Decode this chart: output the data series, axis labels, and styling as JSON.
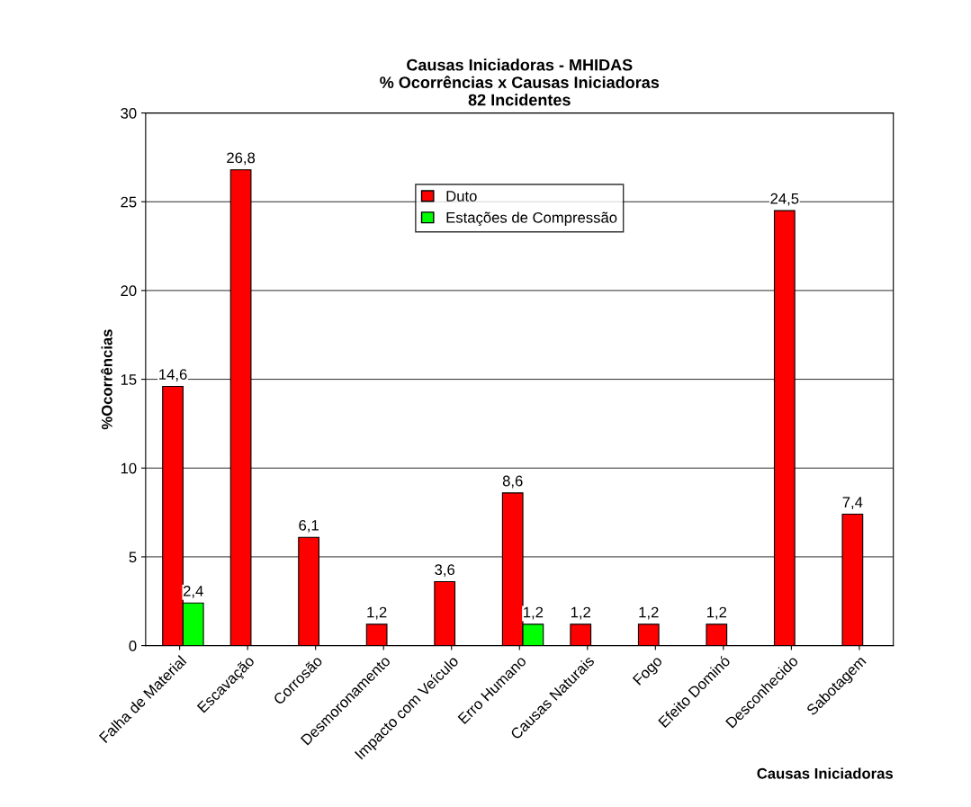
{
  "chart_data": {
    "type": "bar",
    "title": "Causas Iniciadoras - MHIDAS\n% Ocorrências x Causas Iniciadoras\n82 Incidentes",
    "xlabel": "Causas Iniciadoras",
    "ylabel": "%Ocorrências",
    "categories": [
      "Falha de Material",
      "Escavação",
      "Corrosão",
      "Desmoronamento",
      "Impacto com Veículo",
      "Erro Humano",
      "Causas Naturais",
      "Fogo",
      "Efeito Dominó",
      "Desconhecido",
      "Sabotagem"
    ],
    "series": [
      {
        "name": "Duto",
        "color": "#ff0000",
        "values": [
          14.6,
          26.8,
          6.1,
          1.2,
          3.6,
          8.6,
          1.2,
          1.2,
          1.2,
          24.5,
          7.4
        ],
        "value_labels": [
          "14,6",
          "26,8",
          "6,1",
          "1,2",
          "3,6",
          "8,6",
          "1,2",
          "1,2",
          "1,2",
          "24,5",
          "7,4"
        ]
      },
      {
        "name": "Estações de Compressão",
        "color": "#00ff00",
        "values": [
          2.4,
          null,
          null,
          null,
          null,
          1.2,
          null,
          null,
          null,
          null,
          null
        ],
        "value_labels": [
          "2,4",
          null,
          null,
          null,
          null,
          "1,2",
          null,
          null,
          null,
          null,
          null
        ]
      }
    ],
    "ylim": [
      0,
      30
    ],
    "yticks": [
      0,
      5,
      10,
      15,
      20,
      25,
      30
    ],
    "grid": "y",
    "legend": "top"
  }
}
